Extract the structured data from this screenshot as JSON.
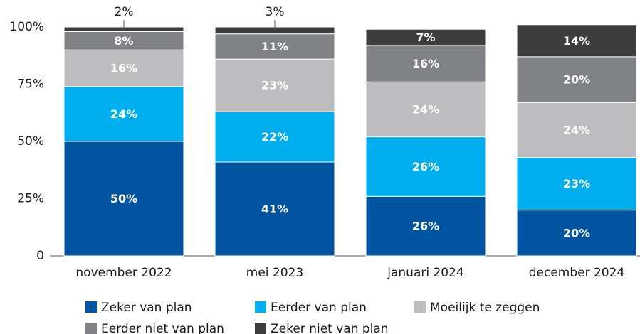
{
  "chart_data": {
    "type": "stacked_bar",
    "categories": [
      "november 2022",
      "mei 2023",
      "januari 2024",
      "december 2024"
    ],
    "series": [
      {
        "name": "Zeker van plan",
        "color": "#0054a0",
        "values": [
          50,
          41,
          26,
          20
        ],
        "value_labels": [
          "50%",
          "41%",
          "26%",
          "20%"
        ]
      },
      {
        "name": "Eerder van plan",
        "color": "#00aeef",
        "values": [
          24,
          22,
          26,
          23
        ],
        "value_labels": [
          "24%",
          "22%",
          "26%",
          "23%"
        ]
      },
      {
        "name": "Moeilijk te zeggen",
        "color": "#bdbdbf",
        "values": [
          16,
          23,
          24,
          24
        ],
        "value_labels": [
          "16%",
          "23%",
          "24%",
          "24%"
        ]
      },
      {
        "name": "Eerder niet van plan",
        "color": "#808285",
        "values": [
          8,
          11,
          16,
          20
        ],
        "value_labels": [
          "8%",
          "11%",
          "16%",
          "20%"
        ]
      },
      {
        "name": "Zeker niet van plan",
        "color": "#3d3d3d",
        "values": [
          2,
          3,
          7,
          14
        ],
        "value_labels": [
          "2%",
          "3%",
          "7%",
          "14%"
        ]
      }
    ],
    "ylim": [
      0,
      100
    ],
    "yticks": [
      0,
      {
        "value": 25,
        "label": "25%"
      },
      {
        "value": 50,
        "label": "50%"
      },
      {
        "value": 75,
        "label": "75%"
      },
      {
        "value": 100,
        "label": "100%"
      }
    ],
    "legend": "bottom"
  }
}
